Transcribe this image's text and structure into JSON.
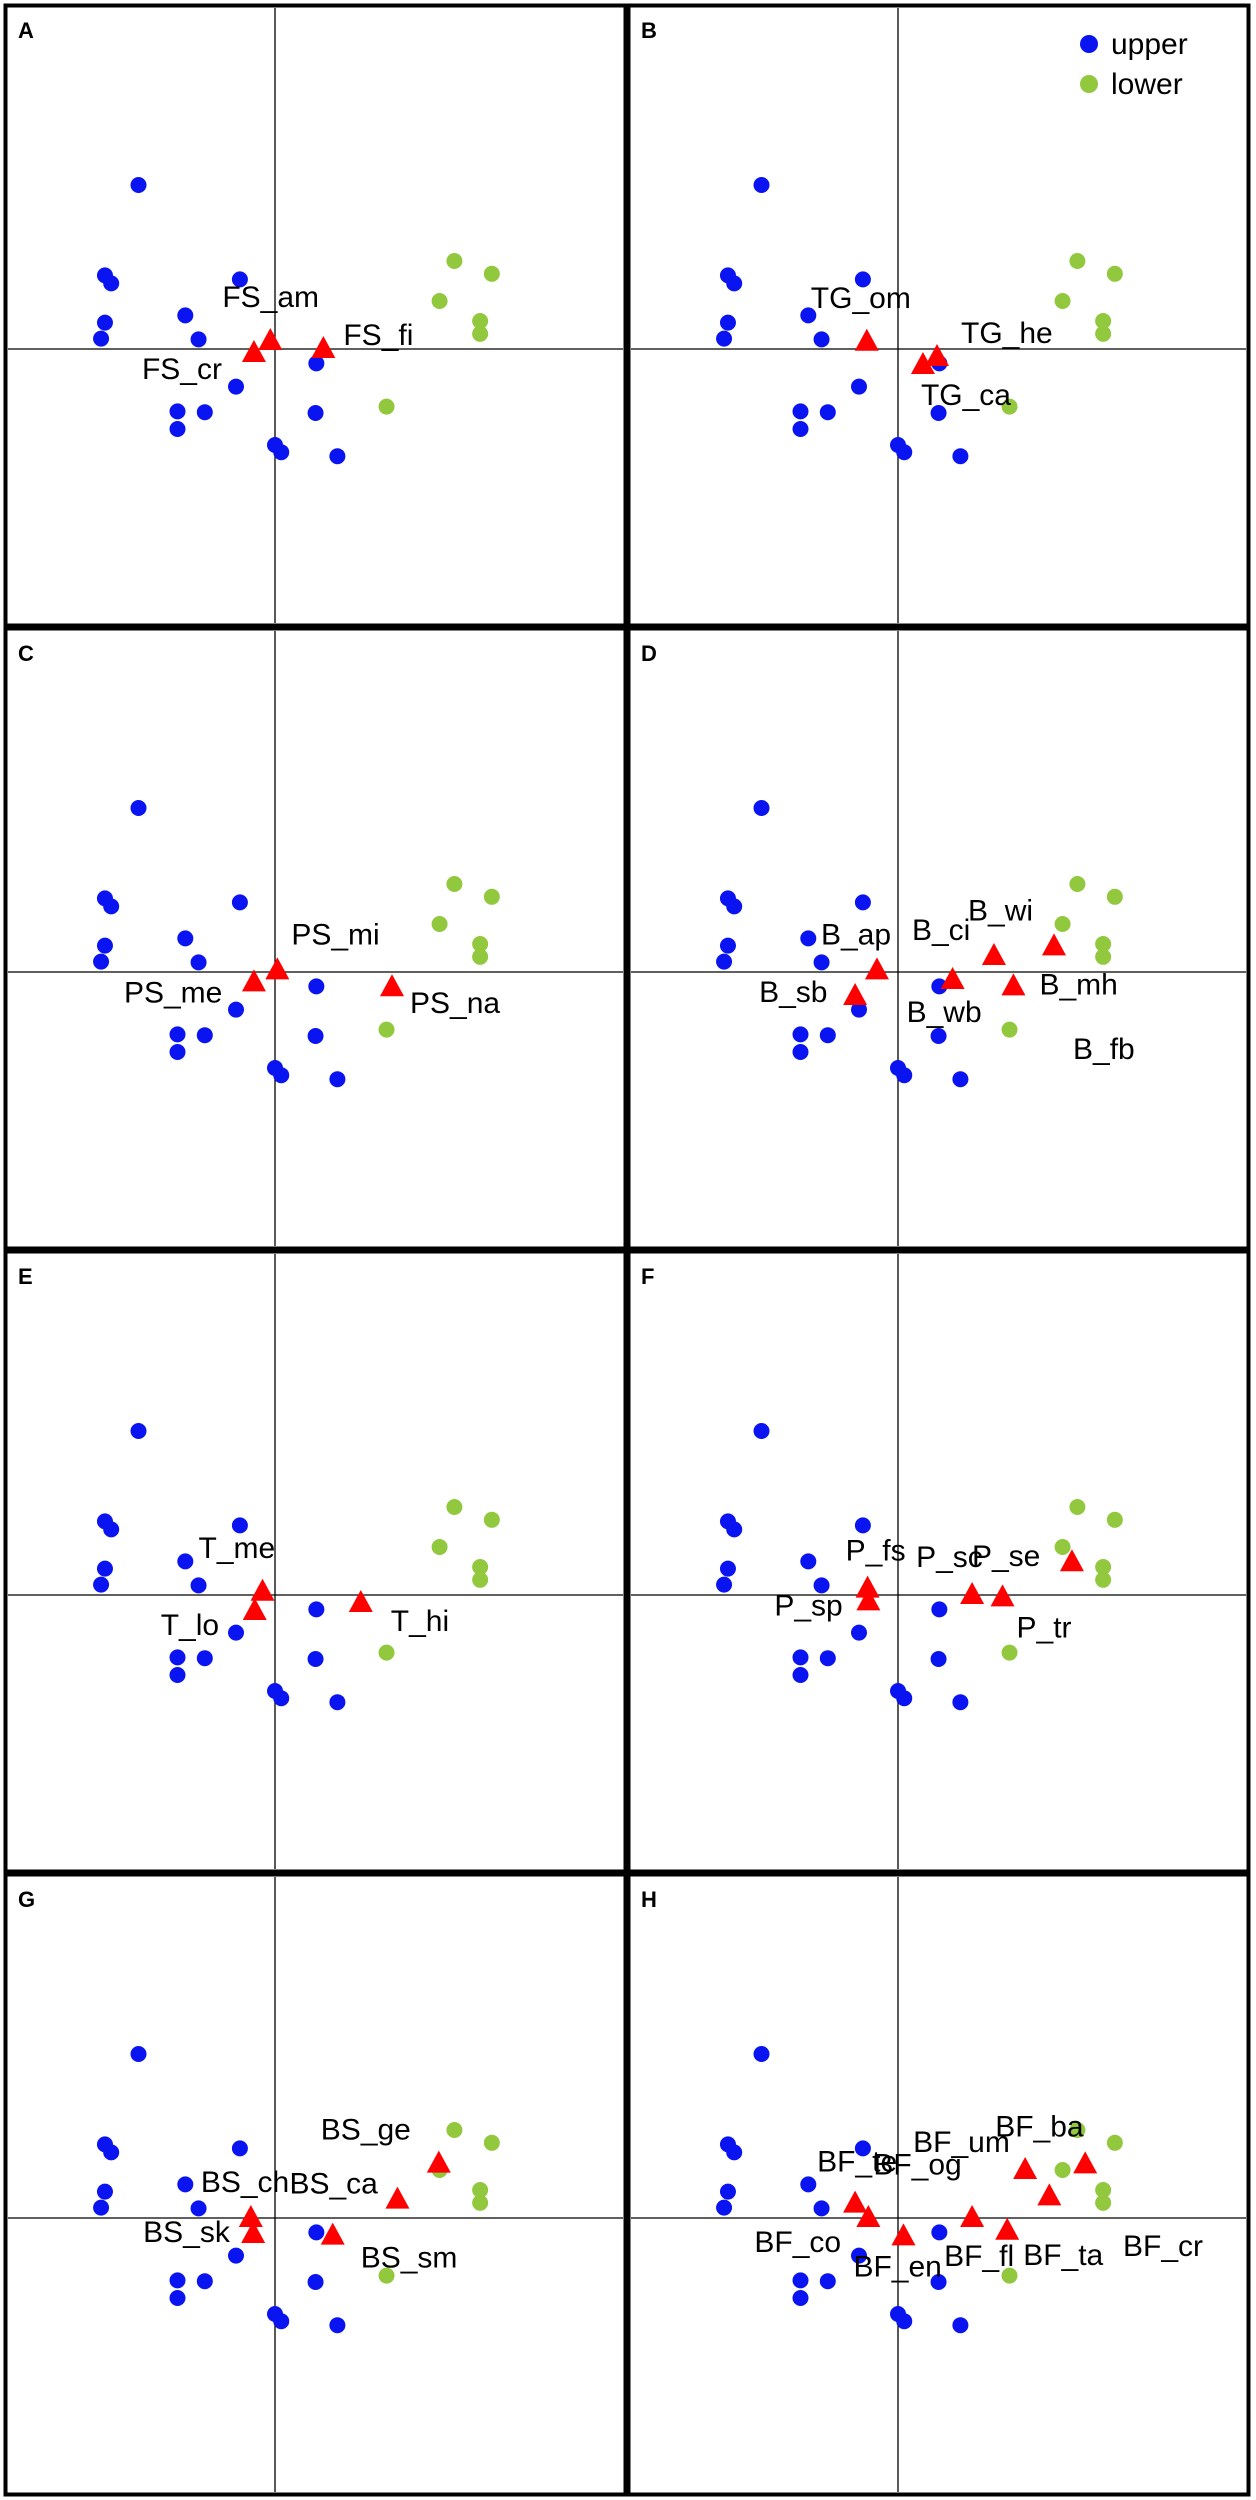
{
  "legend": {
    "position": "top-right of panel B",
    "entries": [
      {
        "label": "upper",
        "color": "#0a14f0"
      },
      {
        "label": "lower",
        "color": "#92c83e"
      }
    ]
  },
  "colors": {
    "upper": "#0a14f0",
    "lower": "#92c83e",
    "species": "#ff0000",
    "frame": "#000000"
  },
  "sites": {
    "upper": [
      {
        "x": -1.75,
        "y": 2.05
      },
      {
        "x": -2.18,
        "y": 0.92
      },
      {
        "x": -2.1,
        "y": 0.82
      },
      {
        "x": -0.45,
        "y": 0.87
      },
      {
        "x": -1.15,
        "y": 0.42
      },
      {
        "x": -0.98,
        "y": 0.12
      },
      {
        "x": -2.18,
        "y": 0.33
      },
      {
        "x": -2.23,
        "y": 0.13
      },
      {
        "x": 0.53,
        "y": -0.18
      },
      {
        "x": -0.5,
        "y": -0.47
      },
      {
        "x": -1.25,
        "y": -0.78
      },
      {
        "x": -0.9,
        "y": -0.79
      },
      {
        "x": 0.52,
        "y": -0.8
      },
      {
        "x": -1.25,
        "y": -1.0
      },
      {
        "x": 0.0,
        "y": -1.2
      },
      {
        "x": 0.08,
        "y": -1.29
      },
      {
        "x": 0.8,
        "y": -1.34
      }
    ],
    "lower": [
      {
        "x": 2.3,
        "y": 1.1
      },
      {
        "x": 2.78,
        "y": 0.94
      },
      {
        "x": 2.11,
        "y": 0.6
      },
      {
        "x": 2.63,
        "y": 0.35
      },
      {
        "x": 2.63,
        "y": 0.19
      },
      {
        "x": 1.43,
        "y": -0.72
      }
    ]
  },
  "chart_data": [
    {
      "panel": "A",
      "type": "scatter",
      "xlim": [
        -2.4,
        3.0
      ],
      "ylim": [
        -1.6,
        2.2
      ],
      "species": [
        {
          "label": "FS_am",
          "x": -0.06,
          "y": 0.1
        },
        {
          "label": "FS_fi",
          "x": 0.62,
          "y": 0.0
        },
        {
          "label": "FS_cr",
          "x": -0.27,
          "y": -0.05
        }
      ]
    },
    {
      "panel": "B",
      "type": "scatter",
      "xlim": [
        -2.4,
        3.0
      ],
      "ylim": [
        -1.6,
        2.2
      ],
      "species": [
        {
          "label": "TG_om",
          "x": -0.4,
          "y": 0.09
        },
        {
          "label": "TG_he",
          "x": 0.5,
          "y": -0.1
        },
        {
          "label": "TG_ca",
          "x": 0.32,
          "y": -0.2
        }
      ]
    },
    {
      "panel": "C",
      "type": "scatter",
      "xlim": [
        -2.4,
        3.0
      ],
      "ylim": [
        -1.6,
        2.2
      ],
      "species": [
        {
          "label": "PS_mi",
          "x": 0.03,
          "y": 0.02
        },
        {
          "label": "PS_me",
          "x": -0.27,
          "y": -0.13
        },
        {
          "label": "PS_na",
          "x": 1.5,
          "y": -0.19
        }
      ]
    },
    {
      "panel": "D",
      "type": "scatter",
      "xlim": [
        -2.4,
        3.0
      ],
      "ylim": [
        -1.6,
        2.2
      ],
      "species": [
        {
          "label": "B_wi",
          "x": 2.0,
          "y": 0.32
        },
        {
          "label": "B_ci",
          "x": 1.23,
          "y": 0.2
        },
        {
          "label": "B_ap",
          "x": -0.27,
          "y": 0.02
        },
        {
          "label": "B_sb",
          "x": -0.55,
          "y": -0.3
        },
        {
          "label": "B_wb",
          "x": 0.7,
          "y": -0.1
        },
        {
          "label": "B_mh",
          "x": 1.48,
          "y": -0.18
        },
        {
          "label": "B_fb",
          "x": null,
          "y": null
        }
      ]
    },
    {
      "panel": "E",
      "type": "scatter",
      "xlim": [
        -2.4,
        3.0
      ],
      "ylim": [
        -1.6,
        2.2
      ],
      "species": [
        {
          "label": "T_me",
          "x": -0.16,
          "y": 0.04
        },
        {
          "label": "T_lo",
          "x": -0.26,
          "y": -0.2
        },
        {
          "label": "T_hi",
          "x": 1.1,
          "y": -0.1
        }
      ]
    },
    {
      "panel": "F",
      "type": "scatter",
      "xlim": [
        -2.4,
        3.0
      ],
      "ylim": [
        -1.6,
        2.2
      ],
      "species": [
        {
          "label": "P_se",
          "x": 2.23,
          "y": 0.41
        },
        {
          "label": "P_fs",
          "x": -0.39,
          "y": 0.08
        },
        {
          "label": "P_sp",
          "x": -0.38,
          "y": -0.08
        },
        {
          "label": "P_sc",
          "x": 0.95,
          "y": 0.0
        },
        {
          "label": "P_tr",
          "x": 1.34,
          "y": -0.03
        }
      ]
    },
    {
      "panel": "G",
      "type": "scatter",
      "xlim": [
        -2.4,
        3.0
      ],
      "ylim": [
        -1.6,
        2.2
      ],
      "species": [
        {
          "label": "BS_ge",
          "x": 2.1,
          "y": 0.68
        },
        {
          "label": "BS_ca",
          "x": 1.57,
          "y": 0.23
        },
        {
          "label": "BS_ch",
          "x": -0.31,
          "y": 0.0
        },
        {
          "label": "BS_sk",
          "x": -0.28,
          "y": -0.2
        },
        {
          "label": "BS_sm",
          "x": 0.74,
          "y": -0.22
        }
      ]
    },
    {
      "panel": "H",
      "type": "scatter",
      "xlim": [
        -2.4,
        3.0
      ],
      "ylim": [
        -1.6,
        2.2
      ],
      "species": [
        {
          "label": "BF_ba",
          "x": 2.4,
          "y": 0.67
        },
        {
          "label": "BF_um",
          "x": 1.63,
          "y": 0.6
        },
        {
          "label": "BF_og",
          "x": 1.94,
          "y": 0.27
        },
        {
          "label": "BF_te",
          "x": -0.55,
          "y": 0.18
        },
        {
          "label": "BF_co",
          "x": -0.38,
          "y": 0.0
        },
        {
          "label": "BF_en",
          "x": 0.07,
          "y": -0.23
        },
        {
          "label": "BF_fl",
          "x": 0.95,
          "y": 0.0
        },
        {
          "label": "BF_cr",
          "x": null,
          "y": null
        },
        {
          "label": "BF_ta",
          "x": 1.4,
          "y": -0.16
        }
      ]
    }
  ]
}
